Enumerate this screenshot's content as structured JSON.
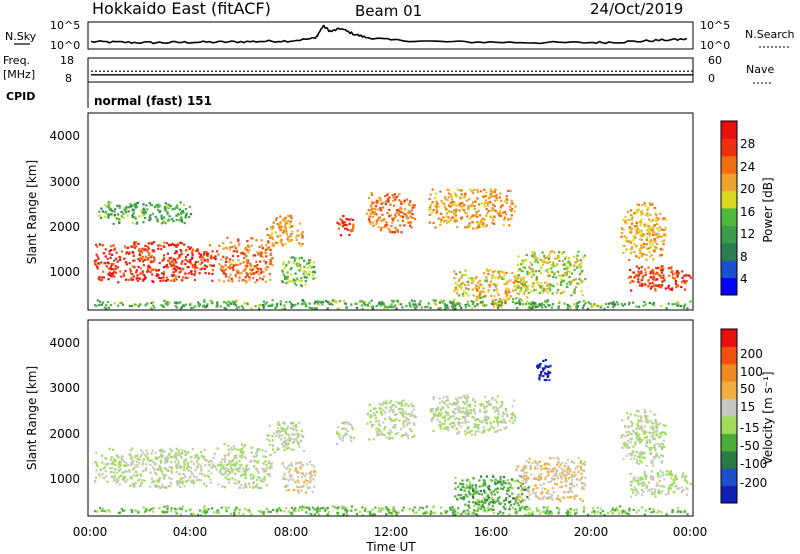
{
  "header": {
    "title": "Hokkaido East (fitACF)",
    "beam": "Beam 01",
    "date": "24/Oct/2019"
  },
  "noise_panel": {
    "left_label": "N.Sky",
    "right_label": "N.Search",
    "left_ticks": [
      "10^5",
      "10^0"
    ],
    "right_ticks": [
      "10^5",
      "10^0"
    ]
  },
  "freq_panel": {
    "left_label_1": "Freq.",
    "left_label_2": "[MHz]",
    "right_label": "Nave",
    "left_ticks": [
      "18",
      "8"
    ],
    "right_ticks": [
      "60",
      "0"
    ],
    "freq_value_mhz": 11,
    "nave_value": 27
  },
  "cpid": {
    "label": "CPID",
    "mode": "normal (fast) 151"
  },
  "power_colorbar": {
    "label": "Power [dB]",
    "ticks": [
      "28",
      "24",
      "20",
      "16",
      "12",
      "8",
      "4"
    ],
    "colors": [
      "#0000ff",
      "#1a4fd0",
      "#2e7d52",
      "#3c9c4a",
      "#4dbb3a",
      "#d8d820",
      "#f0a030",
      "#f07010",
      "#ee3010",
      "#e81010"
    ]
  },
  "velocity_colorbar": {
    "label": "Velocity [m s⁻¹]",
    "ticks": [
      "200",
      "100",
      "50",
      "15",
      "-15",
      "-50",
      "-100",
      "-200"
    ],
    "colors": [
      "#1020b0",
      "#1f4fc8",
      "#2a7a46",
      "#4cae3a",
      "#9edc5a",
      "#c8c8c0",
      "#f0b040",
      "#f08a20",
      "#f05010",
      "#e81010"
    ]
  },
  "time_axis": {
    "label": "Time UT",
    "ticks": [
      "00:00",
      "04:00",
      "08:00",
      "12:00",
      "16:00",
      "20:00",
      "00:00"
    ]
  },
  "y_axis": {
    "label": "Slant Range [km]",
    "ticks": [
      "4000",
      "3000",
      "2000",
      "1000"
    ]
  },
  "chart_data": [
    {
      "type": "line",
      "series": [
        {
          "name": "N.Sky",
          "x_hours": [
            0,
            1,
            2,
            3,
            4,
            5,
            6,
            7,
            8,
            9,
            9.3,
            9.6,
            10,
            10.5,
            11,
            12,
            14,
            16,
            18,
            20,
            21,
            22,
            23,
            24
          ],
          "values": [
            1.2,
            1.1,
            1.0,
            1.0,
            1.1,
            1.1,
            1.2,
            1.3,
            1.4,
            2.0,
            4.8,
            3.5,
            4.2,
            3.0,
            2.2,
            1.6,
            1.2,
            1.1,
            1.0,
            1.0,
            1.1,
            1.3,
            1.6,
            1.8
          ]
        }
      ],
      "xlim": [
        0,
        24
      ]
    },
    {
      "type": "heatmap",
      "title": "Power [dB]",
      "xlabel": "Time UT",
      "ylabel": "Slant Range [km]",
      "xlim": [
        0,
        24
      ],
      "ylim": [
        200,
        4500
      ],
      "clim": [
        0,
        30
      ],
      "blobs": [
        {
          "t0": 0.1,
          "t1": 5.0,
          "r0": 800,
          "r1": 1700,
          "value": 26
        },
        {
          "t0": 5.0,
          "t1": 7.3,
          "r0": 800,
          "r1": 1800,
          "value": 22
        },
        {
          "t0": 7.0,
          "t1": 8.5,
          "r0": 1600,
          "r1": 2300,
          "value": 20
        },
        {
          "t0": 7.6,
          "t1": 9.0,
          "r0": 700,
          "r1": 1400,
          "value": 14
        },
        {
          "t0": 9.8,
          "t1": 10.5,
          "r0": 1800,
          "r1": 2300,
          "value": 25
        },
        {
          "t0": 11.0,
          "t1": 13.0,
          "r0": 1900,
          "r1": 2800,
          "value": 22
        },
        {
          "t0": 13.5,
          "t1": 17.0,
          "r0": 2000,
          "r1": 2900,
          "value": 20
        },
        {
          "t0": 14.5,
          "t1": 17.5,
          "r0": 300,
          "r1": 1100,
          "value": 18
        },
        {
          "t0": 17.0,
          "t1": 19.8,
          "r0": 500,
          "r1": 1500,
          "value": 16
        },
        {
          "t0": 21.5,
          "t1": 24.0,
          "r0": 600,
          "r1": 1200,
          "value": 26
        },
        {
          "t0": 21.2,
          "t1": 23.0,
          "r0": 1300,
          "r1": 2600,
          "value": 19
        },
        {
          "t0": 0.2,
          "t1": 4.0,
          "r0": 2100,
          "r1": 2600,
          "value": 12
        },
        {
          "t0": 0.1,
          "t1": 24.0,
          "r0": 200,
          "r1": 400,
          "value": 12
        }
      ]
    },
    {
      "type": "heatmap",
      "title": "Velocity [m s⁻¹]",
      "xlabel": "Time UT",
      "ylabel": "Slant Range [km]",
      "xlim": [
        0,
        24
      ],
      "ylim": [
        200,
        4500
      ],
      "clim": [
        -200,
        200
      ],
      "blobs": [
        {
          "t0": 0.1,
          "t1": 5.0,
          "r0": 800,
          "r1": 1700,
          "value": 0
        },
        {
          "t0": 5.0,
          "t1": 7.3,
          "r0": 800,
          "r1": 1800,
          "value": 0
        },
        {
          "t0": 7.0,
          "t1": 8.5,
          "r0": 1600,
          "r1": 2300,
          "value": 0
        },
        {
          "t0": 7.6,
          "t1": 9.0,
          "r0": 700,
          "r1": 1400,
          "value": 30
        },
        {
          "t0": 9.8,
          "t1": 10.5,
          "r0": 1800,
          "r1": 2300,
          "value": 0
        },
        {
          "t0": 11.0,
          "t1": 13.0,
          "r0": 1900,
          "r1": 2800,
          "value": 0
        },
        {
          "t0": 13.5,
          "t1": 17.0,
          "r0": 2000,
          "r1": 2900,
          "value": 0
        },
        {
          "t0": 14.5,
          "t1": 17.5,
          "r0": 300,
          "r1": 1100,
          "value": -60
        },
        {
          "t0": 17.0,
          "t1": 19.8,
          "r0": 500,
          "r1": 1500,
          "value": 40
        },
        {
          "t0": 21.5,
          "t1": 24.0,
          "r0": 600,
          "r1": 1200,
          "value": 0
        },
        {
          "t0": 21.2,
          "t1": 23.0,
          "r0": 1300,
          "r1": 2600,
          "value": 0
        },
        {
          "t0": 17.8,
          "t1": 18.4,
          "r0": 3200,
          "r1": 3700,
          "value": -180
        },
        {
          "t0": 0.1,
          "t1": 24.0,
          "r0": 200,
          "r1": 400,
          "value": -40
        }
      ]
    }
  ]
}
